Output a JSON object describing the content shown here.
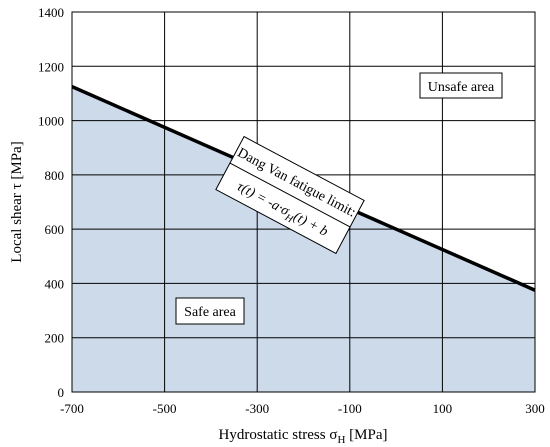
{
  "chart_data": {
    "type": "line",
    "xlabel": "Hydrostatic stress σ",
    "xlabel_sub": "H",
    "xlabel_unit": " [MPa]",
    "ylabel": "Local shear τ [MPa]",
    "xlim": [
      -700,
      300
    ],
    "ylim": [
      0,
      1400
    ],
    "x_ticks": [
      -700,
      -500,
      -300,
      -100,
      100,
      300
    ],
    "y_ticks": [
      0,
      200,
      400,
      600,
      800,
      1000,
      1200,
      1400
    ],
    "grid": true,
    "series": [
      {
        "name": "Dang Van fatigue limit",
        "x": [
          -700,
          300
        ],
        "y": [
          1125,
          375
        ],
        "color": "#000000"
      }
    ],
    "safe_fill_color": "#ccdaea",
    "annotations": {
      "unsafe": "Unsafe area",
      "safe": "Safe area",
      "limit_title": "Dang Van fatigue limit:",
      "formula": {
        "lhs": "τ(t) = -a·σ",
        "sub": "H",
        "rhs": "(t) + b"
      }
    }
  }
}
